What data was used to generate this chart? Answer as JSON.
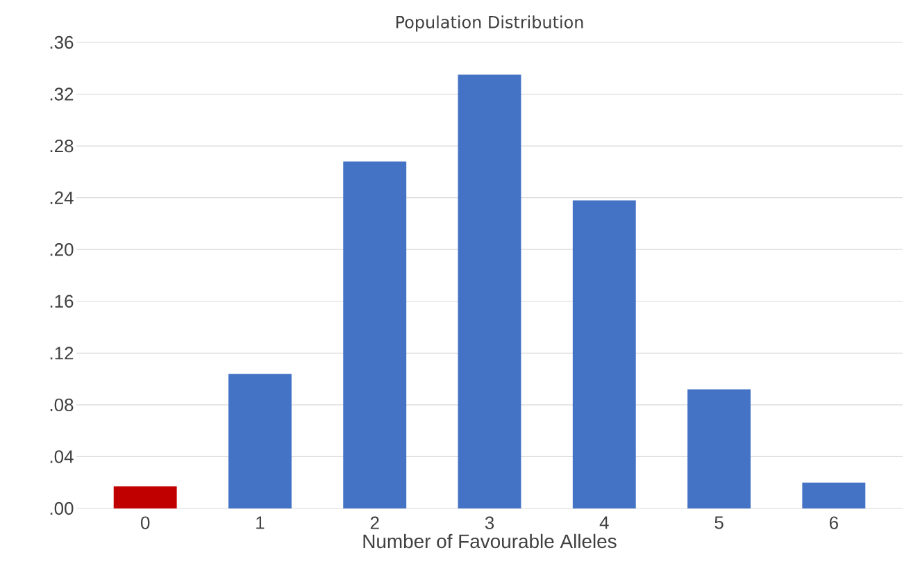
{
  "chart_data": {
    "type": "bar",
    "title": "Population Distribution",
    "xlabel": "Number of Favourable Alleles",
    "categories": [
      "0",
      "1",
      "2",
      "3",
      "4",
      "5",
      "6"
    ],
    "values": [
      0.017,
      0.104,
      0.268,
      0.335,
      0.238,
      0.092,
      0.02
    ],
    "colors": [
      "#c00000",
      "#4472c4",
      "#4472c4",
      "#4472c4",
      "#4472c4",
      "#4472c4",
      "#4472c4"
    ],
    "ylim": [
      0,
      0.36
    ],
    "yticks": [
      {
        "value": 0,
        "label": ".00"
      },
      {
        "value": 0.04,
        "label": ".04"
      },
      {
        "value": 0.08,
        "label": ".08"
      },
      {
        "value": 0.12,
        "label": ".12"
      },
      {
        "value": 0.16,
        "label": ".16"
      },
      {
        "value": 0.2,
        "label": ".20"
      },
      {
        "value": 0.24,
        "label": ".24"
      },
      {
        "value": 0.28,
        "label": ".28"
      },
      {
        "value": 0.32,
        "label": ".32"
      },
      {
        "value": 0.36,
        "label": ".36"
      }
    ],
    "grid": "y"
  }
}
